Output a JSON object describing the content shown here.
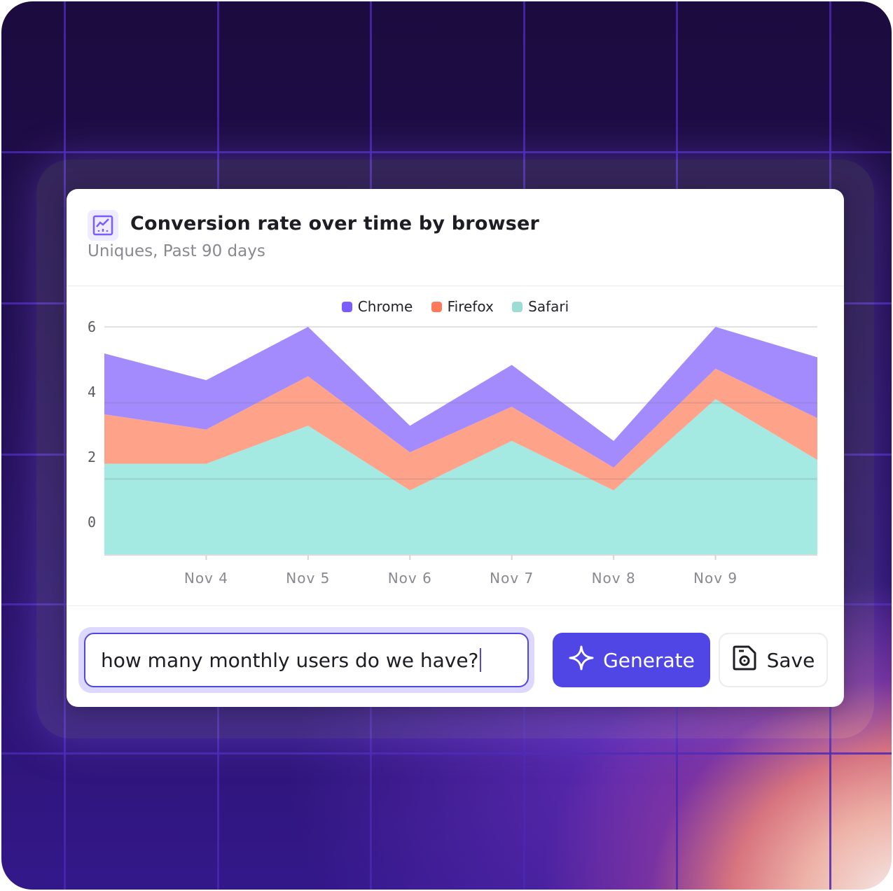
{
  "card": {
    "icon": "line-chart-icon",
    "title": "Conversion rate over time by browser",
    "subtitle": "Uniques, Past 90 days"
  },
  "chart_data": {
    "type": "area",
    "stacked": true,
    "categories": [
      "",
      "Nov 4",
      "Nov 5",
      "Nov 6",
      "Nov 7",
      "Nov 8",
      "Nov 9",
      ""
    ],
    "y_ticks": [
      "6",
      "4",
      "2",
      "0"
    ],
    "ylim": [
      0,
      6
    ],
    "grid": true,
    "legend_position": "top-center",
    "series": [
      {
        "name": "Safari",
        "color": "#a5eae2",
        "legend_color": "#9ddcd4",
        "values": [
          2.4,
          2.4,
          3.4,
          1.7,
          3.0,
          1.7,
          4.1,
          2.5
        ]
      },
      {
        "name": "Firefox",
        "color": "#ffa28a",
        "legend_color": "#ff7a59",
        "values": [
          1.3,
          0.9,
          1.3,
          1.0,
          0.9,
          0.6,
          0.8,
          1.1
        ]
      },
      {
        "name": "Chrome",
        "color": "#a48bfd",
        "legend_color": "#7b5cff",
        "values": [
          1.6,
          1.3,
          1.3,
          0.7,
          1.1,
          0.7,
          1.1,
          1.6
        ]
      }
    ]
  },
  "legend": [
    "Chrome",
    "Firefox",
    "Safari"
  ],
  "query": {
    "value": "how many monthly users do we have?"
  },
  "actions": {
    "generate_label": "Generate",
    "generate_icon": "sparkle-icon",
    "save_label": "Save",
    "save_icon": "save-icon",
    "accent": "#4f46e5"
  }
}
